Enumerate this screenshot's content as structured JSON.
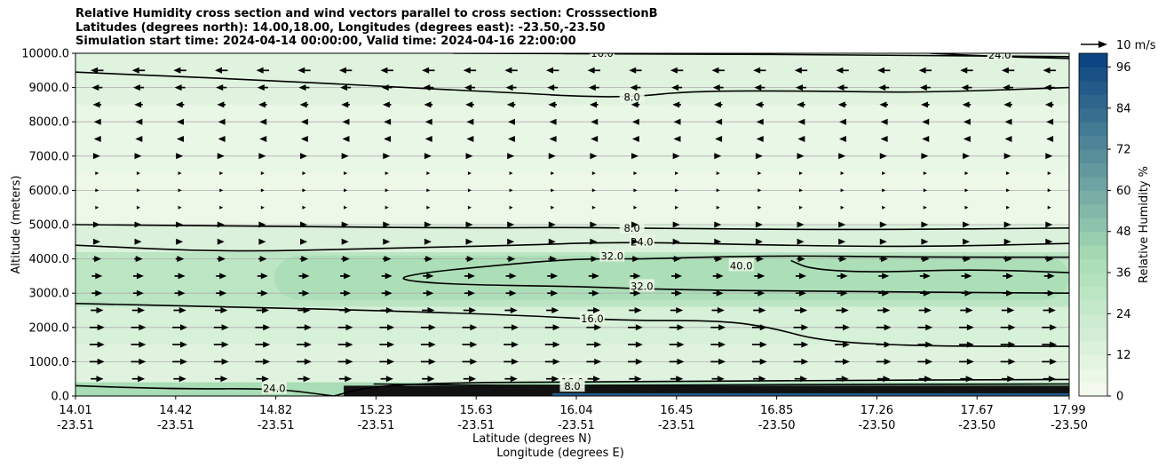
{
  "title_lines": [
    "Relative Humidity cross section and wind vectors parallel to cross section: CrosssectionB",
    "Latitudes (degrees north): 14.00,18.00, Longitudes (degrees east): -23.50,-23.50",
    "Simulation start time: 2024-04-14 00:00:00, Valid time: 2024-04-16 22:00:00"
  ],
  "chart_data": {
    "type": "heatmap",
    "subtype": "filled-contour cross section with contour lines and wind quiver",
    "ylabel": "Altitude (meters)",
    "xlabel_line1": "Latitude (degrees N)",
    "xlabel_line2": "Longitude (degrees E)",
    "ylim": [
      0,
      10000
    ],
    "y_ticks": [
      "0.0",
      "1000.0",
      "2000.0",
      "3000.0",
      "4000.0",
      "5000.0",
      "6000.0",
      "7000.0",
      "8000.0",
      "9000.0",
      "10000.0"
    ],
    "x_ticks": [
      {
        "lat": "14.01",
        "lon": "-23.51"
      },
      {
        "lat": "14.42",
        "lon": "-23.51"
      },
      {
        "lat": "14.82",
        "lon": "-23.51"
      },
      {
        "lat": "15.23",
        "lon": "-23.51"
      },
      {
        "lat": "15.63",
        "lon": "-23.51"
      },
      {
        "lat": "16.04",
        "lon": "-23.51"
      },
      {
        "lat": "16.45",
        "lon": "-23.51"
      },
      {
        "lat": "16.85",
        "lon": "-23.50"
      },
      {
        "lat": "17.26",
        "lon": "-23.50"
      },
      {
        "lat": "17.67",
        "lon": "-23.50"
      },
      {
        "lat": "17.99",
        "lon": "-23.50"
      }
    ],
    "grid": "horizontal",
    "colorbar": {
      "label": "Relative Humidity %",
      "min": 0,
      "max": 100,
      "step": 4,
      "tick_labels": [
        "0",
        "12",
        "24",
        "36",
        "48",
        "60",
        "72",
        "84",
        "96"
      ],
      "colormap": "GnBu",
      "light_color": "#f7fcf0",
      "mid_color": "#a8ddb5",
      "dark_color": "#084081"
    },
    "quiver_key": {
      "label": "10 m/s",
      "speed": 10
    },
    "rh_bands": [
      {
        "from": 0,
        "to": 400,
        "rh": 40
      },
      {
        "from": 400,
        "to": 1500,
        "rh": 12
      },
      {
        "from": 1500,
        "to": 2600,
        "rh": 16
      },
      {
        "from": 2600,
        "to": 4200,
        "rh": 30
      },
      {
        "from": 4200,
        "to": 5000,
        "rh": 14
      },
      {
        "from": 5000,
        "to": 6500,
        "rh": 5
      },
      {
        "from": 6500,
        "to": 8500,
        "rh": 7
      },
      {
        "from": 8500,
        "to": 10000,
        "rh": 12
      }
    ],
    "moist_core": {
      "x_from": 0.2,
      "x_to": 1.0,
      "y_from": 2800,
      "y_to": 4100,
      "rh": 38
    },
    "contours": [
      {
        "level": "8.0",
        "points": [
          [
            0,
            9450
          ],
          [
            0.08,
            9350
          ],
          [
            0.2,
            9200
          ],
          [
            0.3,
            9050
          ],
          [
            0.4,
            8900
          ],
          [
            0.46,
            8820
          ],
          [
            0.5,
            8750
          ],
          [
            0.56,
            8720
          ],
          [
            0.62,
            8900
          ],
          [
            0.75,
            8900
          ],
          [
            0.85,
            8850
          ],
          [
            1.0,
            9000
          ]
        ],
        "label_at": [
          0.56,
          8720
        ]
      },
      {
        "level": "16.0",
        "points": [
          [
            0.38,
            10000
          ],
          [
            0.6,
            9980
          ],
          [
            0.8,
            9950
          ],
          [
            1.0,
            9900
          ]
        ],
        "label_at": [
          0.53,
          10000
        ]
      },
      {
        "level": "24.0",
        "points": [
          [
            0.86,
            10000
          ],
          [
            0.93,
            9900
          ],
          [
            1.0,
            9850
          ]
        ],
        "label_at": [
          0.93,
          9950
        ]
      },
      {
        "level": "8.0",
        "points": [
          [
            0,
            5000
          ],
          [
            0.2,
            4950
          ],
          [
            0.4,
            4900
          ],
          [
            0.5,
            4920
          ],
          [
            0.6,
            4880
          ],
          [
            0.8,
            4850
          ],
          [
            1.0,
            4900
          ]
        ],
        "label_at": [
          0.56,
          4900
        ]
      },
      {
        "level": "24.0",
        "points": [
          [
            0,
            4400
          ],
          [
            0.15,
            4200
          ],
          [
            0.3,
            4300
          ],
          [
            0.45,
            4400
          ],
          [
            0.55,
            4500
          ],
          [
            0.7,
            4400
          ],
          [
            0.85,
            4350
          ],
          [
            1.0,
            4450
          ]
        ],
        "label_at": [
          0.57,
          4500
        ]
      },
      {
        "level": "32.0",
        "points": [
          [
            0.57,
            4000
          ],
          [
            0.5,
            4000
          ],
          [
            0.42,
            3800
          ],
          [
            0.35,
            3600
          ],
          [
            0.32,
            3400
          ],
          [
            0.38,
            3250
          ],
          [
            0.5,
            3200
          ],
          [
            0.6,
            3100
          ],
          [
            0.75,
            3050
          ],
          [
            1.0,
            3000
          ]
        ],
        "label_at": [
          0.57,
          3200
        ]
      },
      {
        "level": "32.0",
        "points": [
          [
            0.57,
            4000
          ],
          [
            0.7,
            4100
          ],
          [
            0.85,
            4050
          ],
          [
            1.0,
            4050
          ]
        ],
        "label_at": [
          0.54,
          4080
        ]
      },
      {
        "level": "40.0",
        "points": [
          [
            0.72,
            3950
          ],
          [
            0.74,
            3700
          ],
          [
            0.8,
            3600
          ],
          [
            0.9,
            3700
          ],
          [
            1.0,
            3600
          ]
        ],
        "label_at": [
          0.67,
          3800
        ]
      },
      {
        "level": "16.0",
        "points": [
          [
            0,
            2700
          ],
          [
            0.15,
            2600
          ],
          [
            0.3,
            2500
          ],
          [
            0.45,
            2350
          ],
          [
            0.55,
            2200
          ],
          [
            0.65,
            2200
          ],
          [
            0.7,
            2000
          ],
          [
            0.75,
            1600
          ],
          [
            0.85,
            1450
          ],
          [
            1.0,
            1450
          ]
        ],
        "label_at": [
          0.52,
          2250
        ]
      },
      {
        "level": "24.0",
        "points": [
          [
            0,
            300
          ],
          [
            0.1,
            200
          ],
          [
            0.2,
            220
          ],
          [
            0.26,
            0
          ]
        ],
        "label_at": [
          0.2,
          220
        ]
      },
      {
        "level": "16.0",
        "points": [
          [
            0.26,
            0
          ],
          [
            0.3,
            300
          ],
          [
            0.4,
            400
          ],
          [
            0.5,
            400
          ],
          [
            0.7,
            450
          ],
          [
            1.0,
            480
          ]
        ],
        "label_at": [
          0.5,
          400
        ]
      },
      {
        "level": "8.0",
        "points": [
          [
            0.3,
            350
          ],
          [
            0.45,
            300
          ],
          [
            0.6,
            320
          ],
          [
            1.0,
            350
          ]
        ],
        "label_at": [
          0.5,
          280
        ]
      }
    ],
    "wind": [
      {
        "alt": 9500,
        "u": -6
      },
      {
        "alt": 9000,
        "u": -5
      },
      {
        "alt": 8500,
        "u": -4
      },
      {
        "alt": 8000,
        "u": -3
      },
      {
        "alt": 7500,
        "u": -3
      },
      {
        "alt": 7000,
        "u": 3
      },
      {
        "alt": 6500,
        "u": 1
      },
      {
        "alt": 6000,
        "u": 1
      },
      {
        "alt": 5500,
        "u": 1
      },
      {
        "alt": 5000,
        "u": 3
      },
      {
        "alt": 4500,
        "u": 3
      },
      {
        "alt": 4000,
        "u": 4
      },
      {
        "alt": 3500,
        "u": 5
      },
      {
        "alt": 3000,
        "u": 5
      },
      {
        "alt": 2500,
        "u": 6
      },
      {
        "alt": 2000,
        "u": 7
      },
      {
        "alt": 1500,
        "u": 7
      },
      {
        "alt": 1000,
        "u": 7
      },
      {
        "alt": 500,
        "u": 6
      }
    ],
    "wind_columns": 24
  }
}
